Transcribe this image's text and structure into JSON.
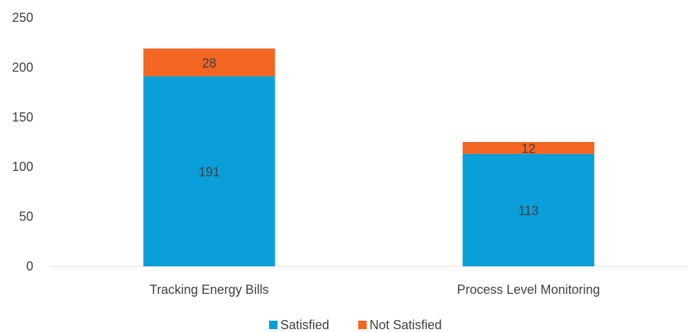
{
  "chart_data": {
    "type": "bar",
    "stacked": true,
    "categories": [
      "Tracking Energy Bills",
      "Process Level Monitoring"
    ],
    "series": [
      {
        "name": "Satisfied",
        "values": [
          191,
          113
        ],
        "color": "#0a9fd8"
      },
      {
        "name": "Not Satisfied",
        "values": [
          28,
          12
        ],
        "color": "#f26522"
      }
    ],
    "ylim": [
      0,
      250
    ],
    "yticks": [
      0,
      50,
      100,
      150,
      200,
      250
    ],
    "grid": false,
    "legend_position": "bottom"
  }
}
